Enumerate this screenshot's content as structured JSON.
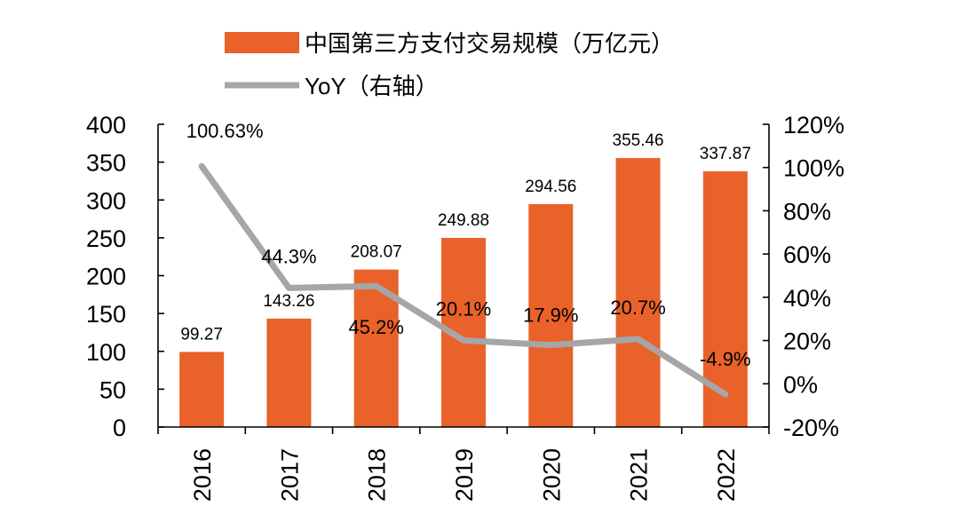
{
  "chart_data": {
    "type": "bar",
    "categories": [
      "2016",
      "2017",
      "2018",
      "2019",
      "2020",
      "2021",
      "2022"
    ],
    "series": [
      {
        "name": "中国第三方支付交易规模（万亿元）",
        "type": "bar",
        "axis": "left",
        "values": [
          99.27,
          143.26,
          208.07,
          249.88,
          294.56,
          355.46,
          337.87
        ],
        "value_labels": [
          "99.27",
          "143.26",
          "208.07",
          "249.88",
          "294.56",
          "355.46",
          "337.87"
        ],
        "color": "#E8622A"
      },
      {
        "name": "YoY（右轴）",
        "type": "line",
        "axis": "right",
        "values": [
          100.63,
          44.3,
          45.2,
          20.1,
          17.9,
          20.7,
          -4.9
        ],
        "value_labels": [
          "100.63%",
          "44.3%",
          "45.2%",
          "20.1%",
          "17.9%",
          "20.7%",
          "-4.9%"
        ],
        "color": "#A6A6A6"
      }
    ],
    "y_left": {
      "ylim": [
        0,
        400
      ],
      "ticks": [
        "0",
        "50",
        "100",
        "150",
        "200",
        "250",
        "300",
        "350",
        "400"
      ]
    },
    "y_right": {
      "ylim": [
        -20,
        120
      ],
      "ticks": [
        "-20%",
        "0%",
        "20%",
        "40%",
        "60%",
        "80%",
        "100%",
        "120%"
      ]
    },
    "legend": {
      "placement": "top",
      "entries": [
        "中国第三方支付交易规模（万亿元）",
        "YoY（右轴）"
      ]
    },
    "grid": false,
    "title": "",
    "xlabel": "",
    "ylabel": ""
  }
}
